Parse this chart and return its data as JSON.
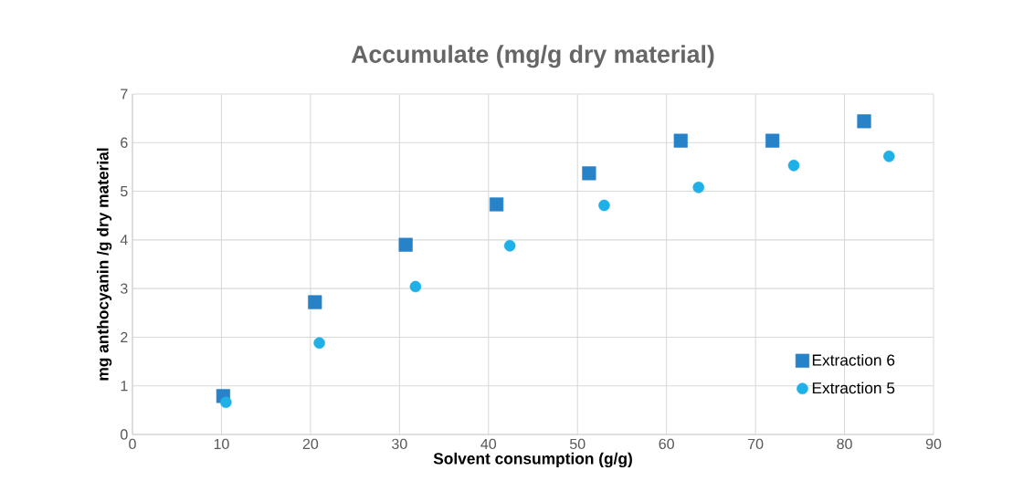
{
  "chart_data": {
    "type": "scatter",
    "title": "Accumulate (mg/g dry material)",
    "xlabel": "Solvent consumption (g/g)",
    "ylabel": "mg anthocyanin  /g dry material",
    "series": [
      {
        "name": "Extraction 6",
        "color": "#2882c8",
        "marker": "square",
        "x": [
          10.2,
          20.5,
          30.7,
          40.9,
          51.3,
          61.6,
          71.9,
          82.2
        ],
        "values": [
          0.79,
          2.72,
          3.9,
          4.73,
          5.37,
          6.04,
          6.04,
          6.44
        ]
      },
      {
        "name": "Extraction 5",
        "color": "#1eb0e6",
        "marker": "circle",
        "x": [
          10.5,
          21.0,
          31.8,
          42.4,
          53.0,
          63.6,
          74.3,
          85.0
        ],
        "values": [
          0.66,
          1.88,
          3.04,
          3.88,
          4.71,
          5.08,
          5.53,
          5.72
        ]
      }
    ],
    "xlim": [
      0,
      90
    ],
    "xticks": [
      0,
      10,
      20,
      30,
      40,
      50,
      60,
      70,
      80,
      90
    ],
    "ylim": [
      0,
      7
    ],
    "yticks": [
      0,
      1,
      2,
      3,
      4,
      5,
      6,
      7
    ],
    "grid": true,
    "legend": "bottom right"
  }
}
